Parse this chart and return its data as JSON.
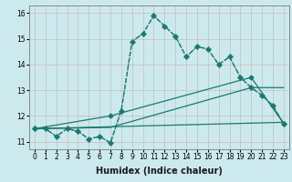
{
  "xlabel": "Humidex (Indice chaleur)",
  "xlim": [
    -0.5,
    23.5
  ],
  "ylim": [
    10.7,
    16.3
  ],
  "bg_color": "#cce9ed",
  "grid_color": "#b8d8dc",
  "line_color": "#1a7a6e",
  "series": [
    {
      "x": [
        0,
        1,
        2,
        3,
        4,
        5,
        6,
        7,
        8,
        9,
        10,
        11,
        12,
        13,
        14,
        15,
        16,
        17,
        18,
        19,
        20,
        21,
        22,
        23
      ],
      "y": [
        11.5,
        11.5,
        11.2,
        11.5,
        11.4,
        11.1,
        11.2,
        10.95,
        12.2,
        14.9,
        15.2,
        15.9,
        15.5,
        15.1,
        14.3,
        14.7,
        14.6,
        14.0,
        14.3,
        13.5,
        13.1,
        12.8,
        12.4,
        11.7
      ],
      "marker": "+",
      "markersize": 4,
      "linewidth": 0.9,
      "linestyle": ":"
    },
    {
      "x": [
        0,
        1,
        2,
        3,
        4,
        5,
        6,
        7,
        8,
        9,
        10,
        11,
        12,
        13,
        14,
        15,
        16,
        17,
        18,
        19,
        20,
        21,
        22,
        23
      ],
      "y": [
        11.5,
        11.5,
        11.2,
        11.5,
        11.4,
        11.1,
        11.2,
        10.95,
        12.2,
        14.9,
        15.2,
        15.9,
        15.5,
        15.1,
        14.3,
        14.7,
        14.6,
        14.0,
        14.3,
        13.5,
        13.1,
        12.8,
        12.4,
        11.7
      ],
      "marker": "D",
      "markersize": 2.5,
      "linewidth": 1.0,
      "linestyle": "--"
    },
    {
      "x": [
        0,
        23
      ],
      "y": [
        11.5,
        11.75
      ],
      "marker": null,
      "markersize": 0,
      "linewidth": 0.9,
      "linestyle": "-"
    },
    {
      "x": [
        0,
        7,
        20,
        23
      ],
      "y": [
        11.5,
        11.55,
        13.1,
        13.1
      ],
      "marker": null,
      "markersize": 0,
      "linewidth": 0.9,
      "linestyle": "-"
    },
    {
      "x": [
        0,
        7,
        20,
        23
      ],
      "y": [
        11.5,
        12.0,
        13.5,
        11.7
      ],
      "marker": "D",
      "markersize": 2.5,
      "linewidth": 0.9,
      "linestyle": "-"
    }
  ],
  "xticks": [
    0,
    1,
    2,
    3,
    4,
    5,
    6,
    7,
    8,
    9,
    10,
    11,
    12,
    13,
    14,
    15,
    16,
    17,
    18,
    19,
    20,
    21,
    22,
    23
  ],
  "yticks": [
    11,
    12,
    13,
    14,
    15,
    16
  ],
  "tick_fontsize": 5.5,
  "label_fontsize": 7.0
}
